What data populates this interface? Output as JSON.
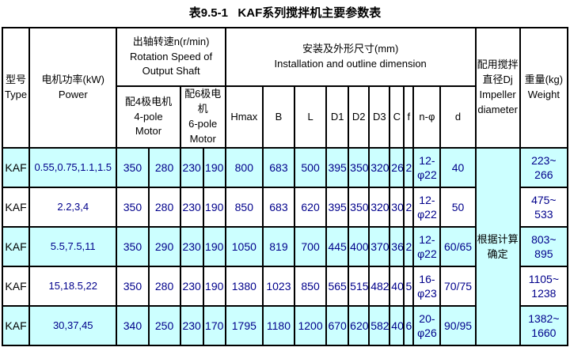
{
  "title": "表9.5-1   KAF系列搅拌机主要参数表",
  "colors": {
    "row_highlight": "#CCFFFF",
    "data_text": "#00008B",
    "header_text": "#000000",
    "border": "#000000"
  },
  "table": {
    "header": {
      "type": "型号\nType",
      "power": "电机功率(kW)\nPower",
      "speed": "出轴转速n(r/min)\nRotation Speed of\nOutput Shaft",
      "motor4": "配4极电机\n4-pole\nMotor",
      "motor6": "配6极电机\n6-pole\nMotor",
      "dims": "安装及外形尺寸(mm)\nInstallation and outline dimension",
      "impeller": "配用搅拌直径Dj\nImpeller\ndiameter",
      "weight": "重量(kg)\nWeight"
    },
    "dim_columns": [
      "Hmax",
      "B",
      "L",
      "D1",
      "D2",
      "D3",
      "C",
      "f",
      "n-φ",
      "d"
    ],
    "impeller_note": "根据计算确定",
    "rows": [
      {
        "cells": [
          "KAF",
          "0.55,0.75,1.1,1.5",
          "350",
          "280",
          "230",
          "190",
          "800",
          "683",
          "500",
          "395",
          "350",
          "320",
          "26",
          "2",
          "12-\nφ22",
          "40",
          "223~\n266"
        ]
      },
      {
        "cells": [
          "KAF",
          "2.2,3,4",
          "350",
          "280",
          "230",
          "190",
          "850",
          "683",
          "620",
          "395",
          "350",
          "320",
          "30",
          "2",
          "12-\nφ22",
          "50",
          "475~\n533"
        ]
      },
      {
        "cells": [
          "KAF",
          "5.5,7.5,11",
          "350",
          "290",
          "230",
          "190",
          "1050",
          "819",
          "700",
          "445",
          "400",
          "370",
          "36",
          "2",
          "12-\nφ22",
          "60/65",
          "803~\n895"
        ]
      },
      {
        "cells": [
          "KAF",
          "15,18.5,22",
          "350",
          "280",
          "230",
          "190",
          "1380",
          "1023",
          "850",
          "565",
          "515",
          "482",
          "40",
          "5",
          "16-\nφ23",
          "70/75",
          "1105~\n1238"
        ]
      },
      {
        "cells": [
          "KAF",
          "30,37,45",
          "340",
          "250",
          "230",
          "170",
          "1795",
          "1180",
          "1200",
          "670",
          "620",
          "582",
          "40",
          "6",
          "20-\nφ26",
          "90/95",
          "1382~\n1660"
        ]
      }
    ]
  }
}
